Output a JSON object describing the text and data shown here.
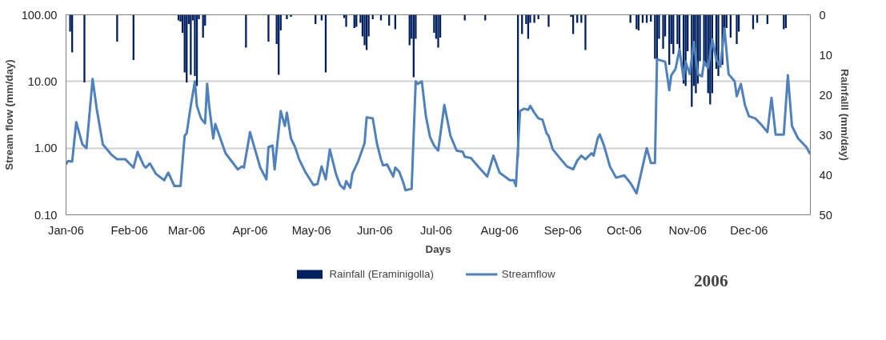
{
  "chart_data": {
    "type": "line",
    "xlabel": "Days",
    "ylabel": "Stream flow (mm/day)",
    "y2label": "Rainfalll (mm/day)",
    "annotations": [
      "2006"
    ],
    "xlim": [
      "2006-01-01",
      "2006-12-31"
    ],
    "xticks": [
      {
        "value": "2006-01-01",
        "label": "Jan-06"
      },
      {
        "value": "2006-02-01",
        "label": "Feb-06"
      },
      {
        "value": "2006-03-01",
        "label": "Mar-06"
      },
      {
        "value": "2006-04-01",
        "label": "Apr-06"
      },
      {
        "value": "2006-05-01",
        "label": "May-06"
      },
      {
        "value": "2006-06-01",
        "label": "Jun-06"
      },
      {
        "value": "2006-07-01",
        "label": "Jul-06"
      },
      {
        "value": "2006-08-01",
        "label": "Aug-06"
      },
      {
        "value": "2006-09-01",
        "label": "Sep-06"
      },
      {
        "value": "2006-10-01",
        "label": "Oct-06"
      },
      {
        "value": "2006-11-01",
        "label": "Nov-06"
      },
      {
        "value": "2006-12-01",
        "label": "Dec-06"
      }
    ],
    "ylim": [
      0.1,
      100
    ],
    "yticks": [
      {
        "value": 0.1,
        "label": "0.10"
      },
      {
        "value": 1,
        "label": "1.00"
      },
      {
        "value": 10,
        "label": "10.00"
      },
      {
        "value": 100,
        "label": "100.00"
      }
    ],
    "y2lim": [
      50,
      0
    ],
    "y2ticks": [
      0,
      10,
      20,
      30,
      40,
      50
    ],
    "log": "y",
    "grid": "y",
    "legend": "bottom",
    "series": [
      {
        "name": "Rainfall (Eraminigolla)",
        "type": "bar",
        "axis": "y2",
        "color": "#002060",
        "x": [
          "2006-01-03",
          "2006-01-04",
          "2006-01-10",
          "2006-01-26",
          "2006-02-03",
          "2006-02-25",
          "2006-02-26",
          "2006-02-27",
          "2006-02-28",
          "2006-03-01",
          "2006-03-02",
          "2006-03-03",
          "2006-03-04",
          "2006-03-05",
          "2006-03-06",
          "2006-03-07",
          "2006-03-09",
          "2006-03-10",
          "2006-03-30",
          "2006-04-10",
          "2006-04-14",
          "2006-04-15",
          "2006-04-16",
          "2006-04-19",
          "2006-04-21",
          "2006-05-03",
          "2006-05-06",
          "2006-05-08",
          "2006-05-17",
          "2006-05-18",
          "2006-05-22",
          "2006-05-23",
          "2006-05-25",
          "2006-05-26",
          "2006-05-27",
          "2006-05-28",
          "2006-05-29",
          "2006-05-31",
          "2006-06-04",
          "2006-06-08",
          "2006-06-11",
          "2006-06-18",
          "2006-06-19",
          "2006-06-20",
          "2006-06-21",
          "2006-06-30",
          "2006-07-01",
          "2006-07-02",
          "2006-07-03",
          "2006-07-15",
          "2006-07-25",
          "2006-08-10",
          "2006-08-12",
          "2006-08-14",
          "2006-08-15",
          "2006-08-16",
          "2006-08-18",
          "2006-08-20",
          "2006-08-25",
          "2006-09-05",
          "2006-09-06",
          "2006-09-08",
          "2006-09-10",
          "2006-09-12",
          "2006-10-04",
          "2006-10-07",
          "2006-10-08",
          "2006-10-10",
          "2006-10-12",
          "2006-10-14",
          "2006-10-16",
          "2006-10-17",
          "2006-10-18",
          "2006-10-20",
          "2006-10-21",
          "2006-10-23",
          "2006-10-24",
          "2006-10-25",
          "2006-10-27",
          "2006-10-28",
          "2006-10-30",
          "2006-10-31",
          "2006-11-01",
          "2006-11-03",
          "2006-11-04",
          "2006-11-05",
          "2006-11-06",
          "2006-11-07",
          "2006-11-09",
          "2006-11-10",
          "2006-11-11",
          "2006-11-12",
          "2006-11-13",
          "2006-11-15",
          "2006-11-16",
          "2006-11-18",
          "2006-11-19",
          "2006-11-20",
          "2006-11-22",
          "2006-11-25",
          "2006-11-26",
          "2006-12-03",
          "2006-12-05",
          "2006-12-10",
          "2006-12-18",
          "2006-12-19"
        ],
        "values": [
          4.2,
          9.4,
          16.9,
          6.7,
          11.3,
          1.4,
          1.7,
          4.5,
          14.4,
          16.9,
          2.3,
          15.0,
          1.4,
          15.3,
          17.8,
          1.1,
          5.7,
          2.7,
          8.2,
          6.7,
          7.3,
          15.0,
          3.9,
          1.1,
          0.5,
          2.3,
          1.4,
          14.4,
          0.8,
          3.0,
          3.3,
          3.0,
          2.0,
          5.4,
          7.6,
          8.8,
          5.4,
          1.1,
          1.4,
          2.7,
          3.6,
          7.6,
          6.0,
          15.6,
          6.0,
          4.5,
          6.0,
          8.2,
          5.7,
          1.4,
          1.4,
          35.7,
          4.8,
          2.3,
          6.0,
          2.0,
          2.0,
          1.1,
          3.0,
          0.5,
          4.8,
          2.0,
          2.0,
          8.8,
          2.0,
          3.6,
          3.9,
          2.0,
          2.0,
          1.7,
          11.0,
          11.0,
          6.0,
          8.5,
          5.4,
          12.5,
          7.3,
          9.8,
          7.3,
          9.4,
          17.2,
          17.8,
          9.1,
          23.0,
          17.8,
          19.6,
          17.2,
          11.6,
          12.8,
          12.8,
          19.6,
          22.4,
          19.6,
          13.5,
          15.3,
          12.5,
          4.2,
          3.3,
          5.7,
          7.3,
          4.2,
          3.6,
          2.0,
          2.3,
          3.6,
          3.3
        ]
      },
      {
        "name": "Streamflow",
        "color": "#4f81bd",
        "x": [
          "2006-01-01",
          "2006-01-02",
          "2006-01-04",
          "2006-01-06",
          "2006-01-09",
          "2006-01-11",
          "2006-01-14",
          "2006-01-16",
          "2006-01-19",
          "2006-01-23",
          "2006-01-26",
          "2006-01-30",
          "2006-02-03",
          "2006-02-05",
          "2006-02-08",
          "2006-02-09",
          "2006-02-11",
          "2006-02-14",
          "2006-02-18",
          "2006-02-20",
          "2006-02-23",
          "2006-02-26",
          "2006-02-28",
          "2006-03-01",
          "2006-03-03",
          "2006-03-05",
          "2006-03-06",
          "2006-03-08",
          "2006-03-10",
          "2006-03-11",
          "2006-03-12",
          "2006-03-14",
          "2006-03-15",
          "2006-03-20",
          "2006-03-26",
          "2006-03-28",
          "2006-03-29",
          "2006-04-01",
          "2006-04-02",
          "2006-04-06",
          "2006-04-09",
          "2006-04-10",
          "2006-04-12",
          "2006-04-13",
          "2006-04-16",
          "2006-04-18",
          "2006-04-19",
          "2006-04-21",
          "2006-04-23",
          "2006-04-25",
          "2006-04-28",
          "2006-05-02",
          "2006-05-04",
          "2006-05-06",
          "2006-05-08",
          "2006-05-10",
          "2006-05-13",
          "2006-05-15",
          "2006-05-17",
          "2006-05-18",
          "2006-05-20",
          "2006-05-21",
          "2006-05-24",
          "2006-05-27",
          "2006-05-28",
          "2006-05-31",
          "2006-06-02",
          "2006-06-04",
          "2006-06-05",
          "2006-06-07",
          "2006-06-10",
          "2006-06-11",
          "2006-06-13",
          "2006-06-15",
          "2006-06-16",
          "2006-06-19",
          "2006-06-21",
          "2006-06-22",
          "2006-06-24",
          "2006-06-26",
          "2006-06-28",
          "2006-06-30",
          "2006-07-02",
          "2006-07-05",
          "2006-07-08",
          "2006-07-11",
          "2006-07-14",
          "2006-07-15",
          "2006-07-18",
          "2006-07-22",
          "2006-07-26",
          "2006-07-29",
          "2006-08-01",
          "2006-08-06",
          "2006-08-08",
          "2006-08-09",
          "2006-08-11",
          "2006-08-13",
          "2006-08-15",
          "2006-08-16",
          "2006-08-18",
          "2006-08-20",
          "2006-08-22",
          "2006-08-24",
          "2006-08-25",
          "2006-08-27",
          "2006-08-31",
          "2006-09-03",
          "2006-09-06",
          "2006-09-08",
          "2006-09-10",
          "2006-09-12",
          "2006-09-15",
          "2006-09-16",
          "2006-09-18",
          "2006-09-19",
          "2006-09-21",
          "2006-09-24",
          "2006-09-27",
          "2006-10-01",
          "2006-10-04",
          "2006-10-07",
          "2006-10-12",
          "2006-10-14",
          "2006-10-16",
          "2006-10-17",
          "2006-10-19",
          "2006-10-21",
          "2006-10-23",
          "2006-10-24",
          "2006-10-26",
          "2006-10-28",
          "2006-10-30",
          "2006-10-31",
          "2006-11-02",
          "2006-11-04",
          "2006-11-06",
          "2006-11-08",
          "2006-11-09",
          "2006-11-11",
          "2006-11-13",
          "2006-11-15",
          "2006-11-17",
          "2006-11-19",
          "2006-11-21",
          "2006-11-24",
          "2006-11-25",
          "2006-11-27",
          "2006-11-29",
          "2006-12-01",
          "2006-12-04",
          "2006-12-07",
          "2006-12-10",
          "2006-12-12",
          "2006-12-14",
          "2006-12-18",
          "2006-12-20",
          "2006-12-22",
          "2006-12-25",
          "2006-12-29",
          "2006-12-31"
        ],
        "values": [
          0.57,
          0.64,
          0.63,
          2.45,
          1.14,
          1.0,
          10.9,
          3.9,
          1.14,
          0.81,
          0.68,
          0.68,
          0.51,
          0.88,
          0.55,
          0.51,
          0.59,
          0.41,
          0.33,
          0.43,
          0.27,
          0.27,
          1.53,
          1.67,
          4.3,
          10,
          4.3,
          2.8,
          2.35,
          9.2,
          4.3,
          1.4,
          2.3,
          0.84,
          0.48,
          0.53,
          0.51,
          1.74,
          1.35,
          0.51,
          0.34,
          1.04,
          1.09,
          0.48,
          3.6,
          2.15,
          3.4,
          1.4,
          1.04,
          0.68,
          0.44,
          0.28,
          0.29,
          0.53,
          0.34,
          0.96,
          0.41,
          0.28,
          0.245,
          0.32,
          0.255,
          0.41,
          0.65,
          1.19,
          2.9,
          2.8,
          1.19,
          0.68,
          0.55,
          0.57,
          0.375,
          0.51,
          0.44,
          0.3,
          0.234,
          0.245,
          10,
          9.2,
          10,
          3.0,
          1.47,
          1.09,
          0.92,
          4.45,
          1.53,
          0.92,
          0.88,
          0.74,
          0.71,
          0.51,
          0.375,
          0.77,
          0.43,
          0.33,
          0.33,
          0.27,
          3.6,
          3.9,
          3.75,
          4.3,
          3.4,
          2.8,
          2.67,
          1.67,
          1.53,
          0.96,
          0.68,
          0.53,
          0.48,
          0.65,
          0.77,
          0.68,
          0.84,
          0.77,
          1.4,
          1.6,
          1.11,
          0.53,
          0.36,
          0.39,
          0.3,
          0.21,
          1.0,
          0.6,
          0.6,
          21.5,
          20.6,
          19.8,
          7.4,
          12.4,
          15.3,
          30.3,
          10.9,
          19.8,
          12.9,
          39.2,
          12.9,
          11.9,
          19.8,
          16.0,
          42.6,
          21.5,
          16.7,
          62.5,
          12.9,
          10,
          6.0,
          9.2,
          4.45,
          3.0,
          2.8,
          2.25,
          1.74,
          5.7,
          1.6,
          1.6,
          12.4,
          2.15,
          1.4,
          1.04,
          0.81
        ]
      }
    ]
  }
}
